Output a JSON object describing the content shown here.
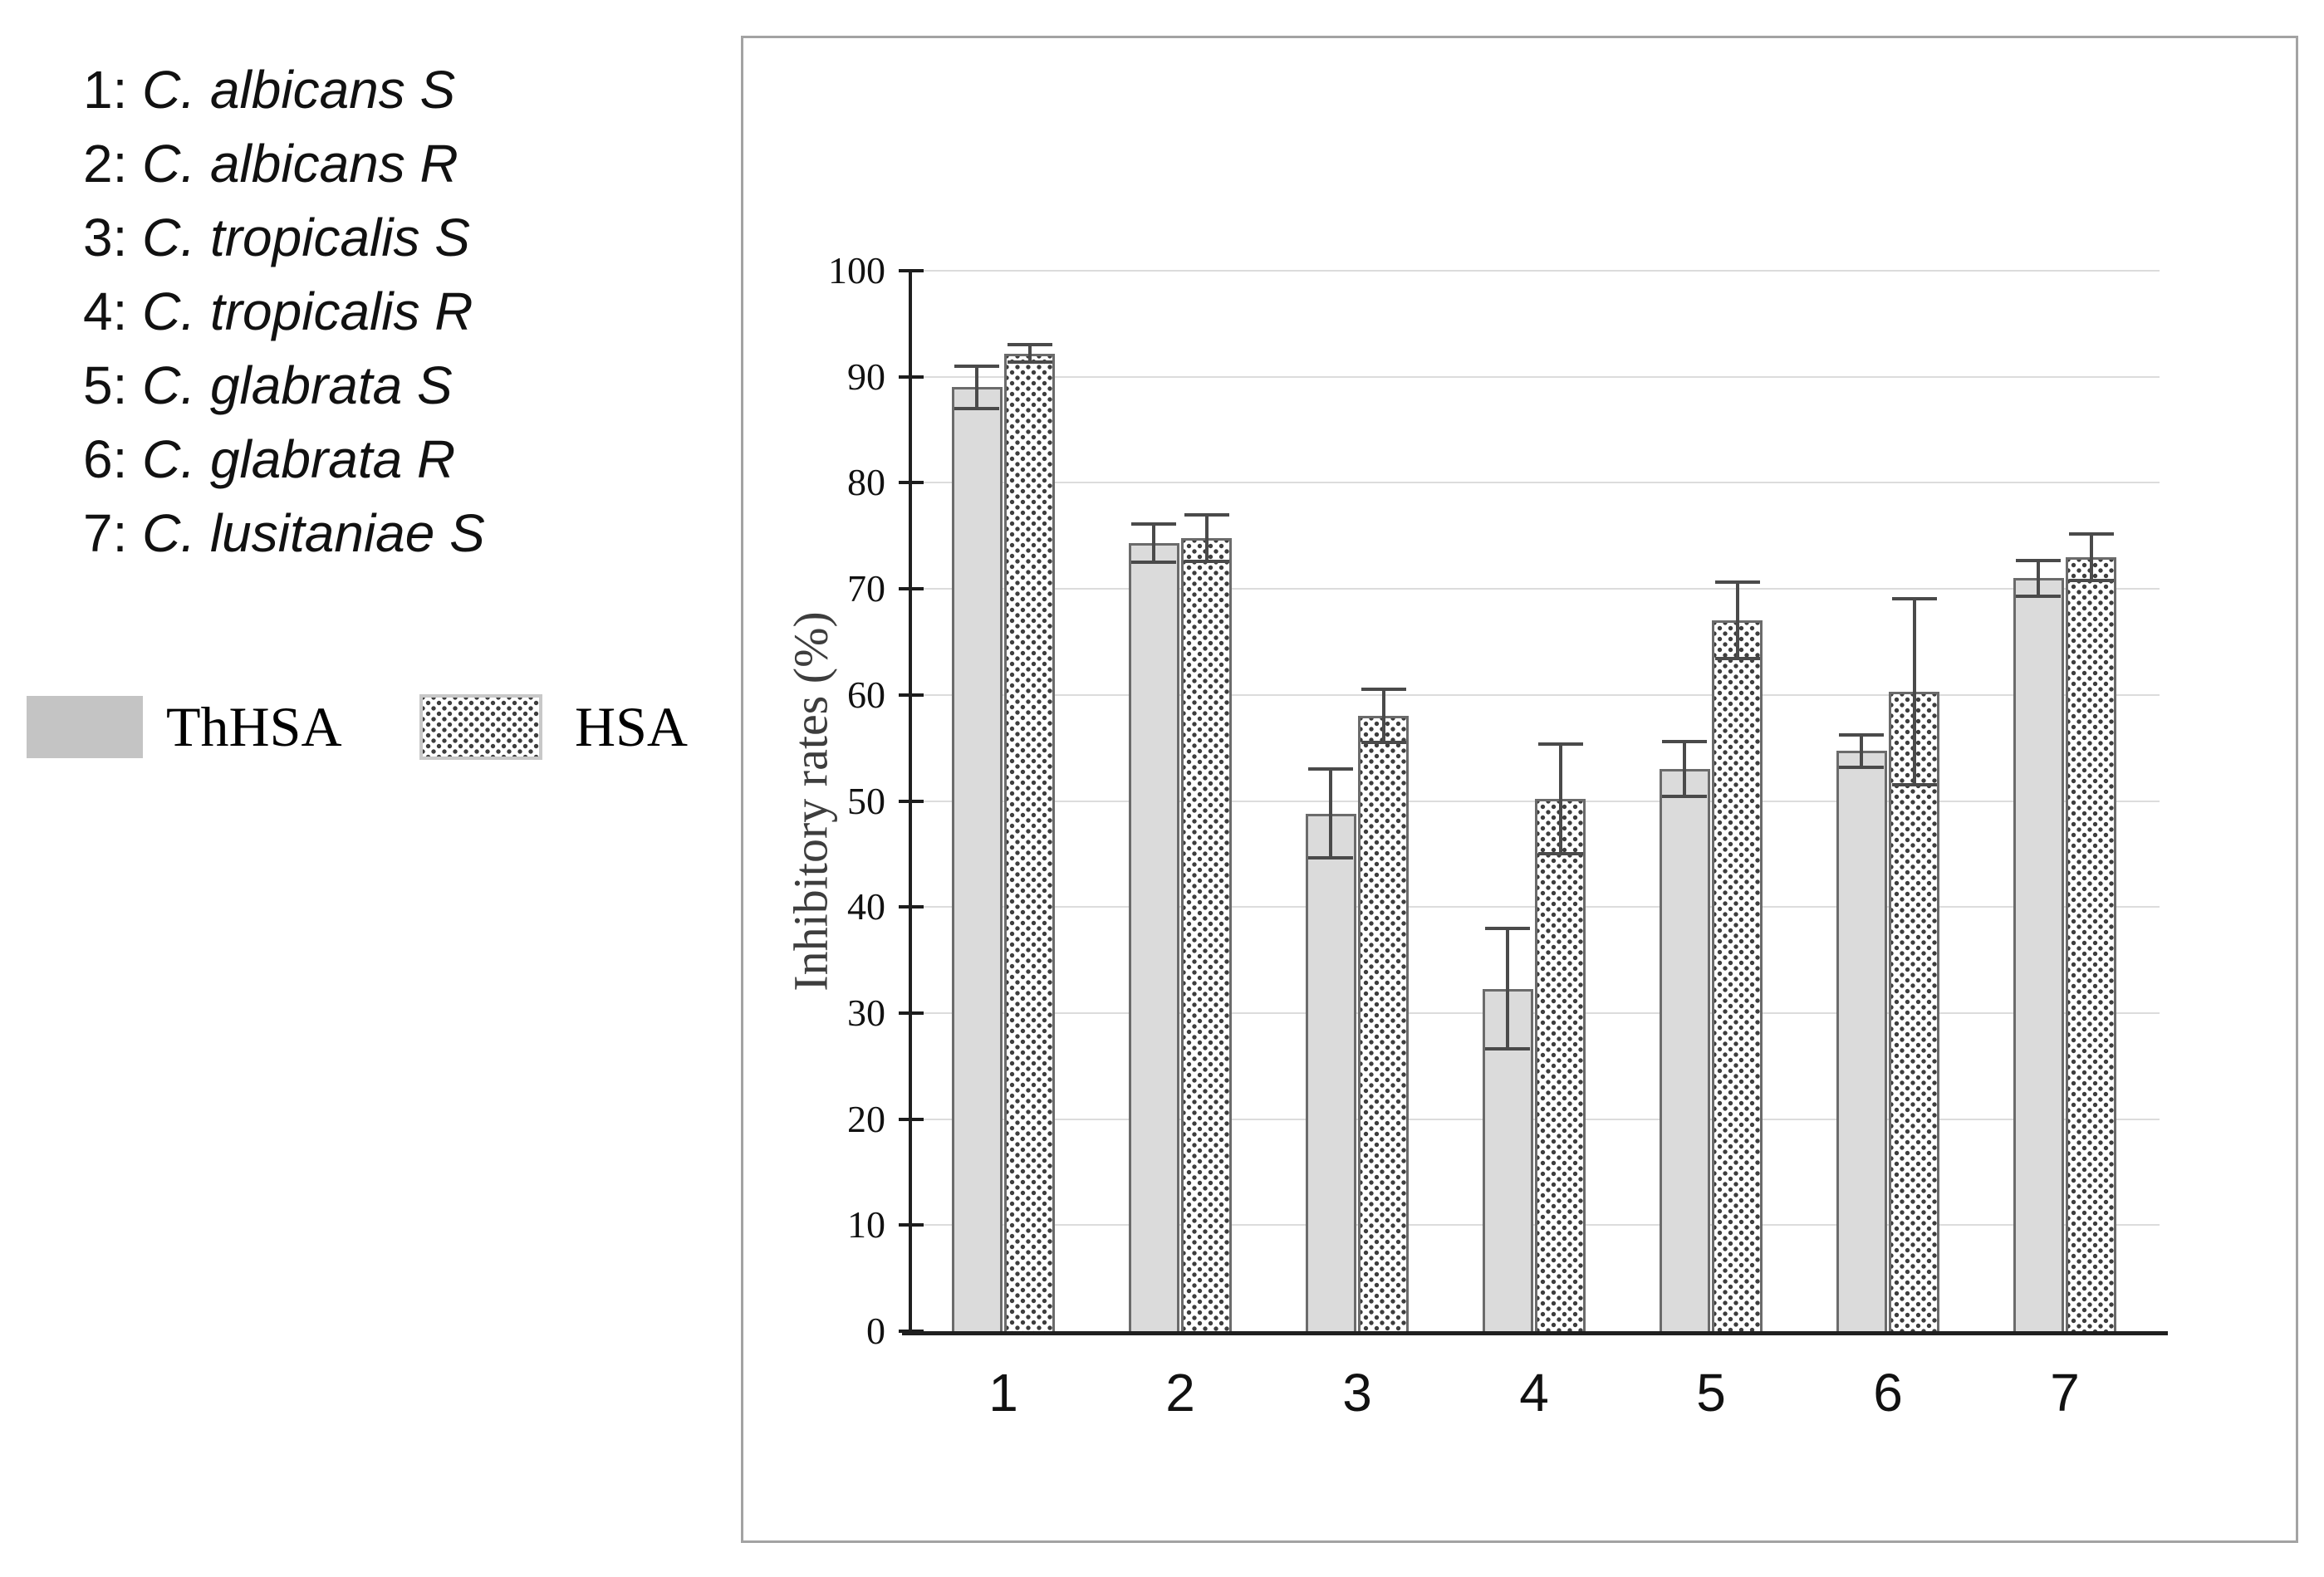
{
  "species_key": {
    "items": [
      {
        "prefix": "1:",
        "name": "C. albicans S"
      },
      {
        "prefix": "2:",
        "name": "C. albicans R"
      },
      {
        "prefix": "3:",
        "name": "C. tropicalis S"
      },
      {
        "prefix": "4:",
        "name": "C. tropicalis R"
      },
      {
        "prefix": "5:",
        "name": "C. glabrata S"
      },
      {
        "prefix": "6:",
        "name": "C. glabrata R"
      },
      {
        "prefix": "7:",
        "name": "C. lusitaniae S"
      }
    ]
  },
  "legend": {
    "items": [
      {
        "label": "ThHSA",
        "swatch": "solid-gray-square"
      },
      {
        "label": "HSA",
        "swatch": "dotted-square"
      }
    ]
  },
  "chart_data": {
    "type": "bar",
    "grouped": true,
    "error_bars": true,
    "categories": [
      "1",
      "2",
      "3",
      "4",
      "5",
      "6",
      "7"
    ],
    "series": [
      {
        "name": "ThHSA",
        "style": "solid-gray",
        "values": [
          89.0,
          74.3,
          48.8,
          32.3,
          53.0,
          54.7,
          71.0
        ],
        "errors": [
          2.0,
          1.8,
          4.2,
          5.7,
          2.6,
          1.5,
          1.7
        ]
      },
      {
        "name": "HSA",
        "style": "dotted",
        "values": [
          92.2,
          74.8,
          58.0,
          50.2,
          67.0,
          60.3,
          73.0
        ],
        "errors": [
          0.8,
          2.2,
          2.5,
          5.2,
          3.6,
          8.8,
          2.2
        ]
      }
    ],
    "title": "",
    "xlabel": "",
    "ylabel": "Inhibitory rates (%)",
    "ylim": [
      0,
      100
    ],
    "yticks": [
      0,
      10,
      20,
      30,
      40,
      50,
      60,
      70,
      80,
      90,
      100
    ],
    "grid": true,
    "legend_position": "outside-left"
  },
  "colors": {
    "bar_fill": "#dbdbdb",
    "bar_border": "#6b6b6b",
    "dot_color": "#3d3d3d",
    "gridline": "#dcdcdc",
    "axis": "#1f1f1f",
    "error_bar": "#4a4a4a",
    "frame_border": "#a3a3a3",
    "legend_solid_swatch": "#c4c4c4",
    "ylabel_color": "#3d3d3d"
  }
}
